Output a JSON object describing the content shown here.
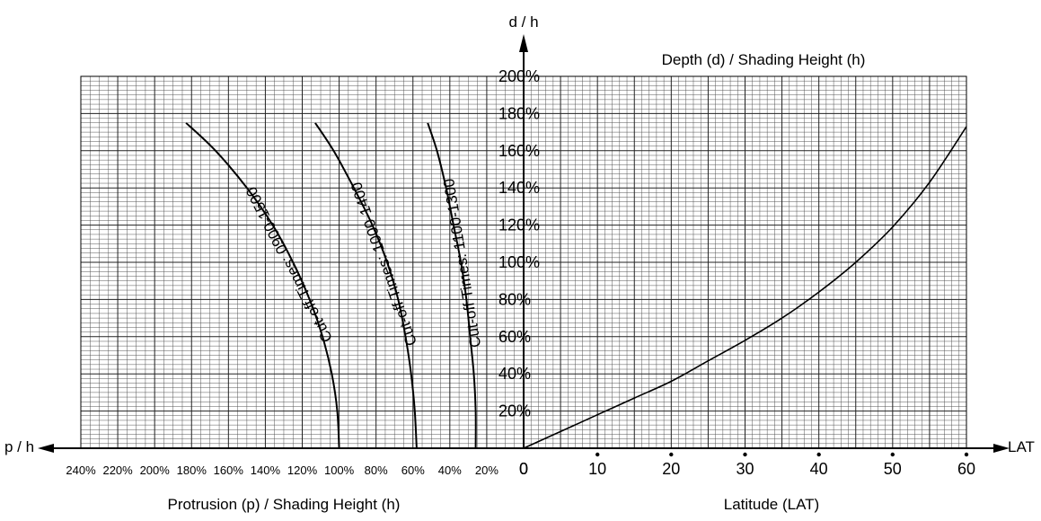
{
  "chart_data": {
    "type": "line",
    "panels": [
      {
        "name": "left",
        "xlabel": "Protrusion (p) / Shading Height (h)",
        "x_axis_arrow_label": "p / h",
        "x_ticks": [
          "240%",
          "220%",
          "200%",
          "180%",
          "160%",
          "140%",
          "120%",
          "100%",
          "80%",
          "60%",
          "40%",
          "20%"
        ],
        "xlim": [
          0,
          240
        ],
        "x_unit": "%",
        "series": [
          {
            "name": "Cut-off Times: 0900-1500",
            "points": [
              [
                100,
                0
              ],
              [
                101,
                20
              ],
              [
                104,
                40
              ],
              [
                109,
                60
              ],
              [
                116,
                80
              ],
              [
                125,
                100
              ],
              [
                136,
                120
              ],
              [
                150,
                140
              ],
              [
                167,
                160
              ],
              [
                183,
                175
              ]
            ]
          },
          {
            "name": "Cut-off Times: 1000-1400",
            "points": [
              [
                58,
                0
              ],
              [
                59,
                20
              ],
              [
                61,
                40
              ],
              [
                64,
                60
              ],
              [
                68,
                80
              ],
              [
                74,
                100
              ],
              [
                82,
                120
              ],
              [
                92,
                140
              ],
              [
                103,
                160
              ],
              [
                113,
                175
              ]
            ]
          },
          {
            "name": "Cut-off Times: 1100-1300",
            "points": [
              [
                26,
                0
              ],
              [
                26,
                20
              ],
              [
                27,
                40
              ],
              [
                29,
                60
              ],
              [
                31,
                80
              ],
              [
                34,
                100
              ],
              [
                38,
                120
              ],
              [
                42,
                140
              ],
              [
                47,
                160
              ],
              [
                52,
                175
              ]
            ]
          }
        ]
      },
      {
        "name": "right",
        "xlabel": "Latitude (LAT)",
        "x_axis_arrow_label": "LAT",
        "x_ticks": [
          "0",
          "10",
          "20",
          "30",
          "40",
          "50",
          "60"
        ],
        "xlim": [
          0,
          60
        ],
        "series": [
          {
            "name": "",
            "points": [
              [
                0,
                0
              ],
              [
                5,
                9
              ],
              [
                10,
                18
              ],
              [
                15,
                27
              ],
              [
                20,
                36
              ],
              [
                25,
                47
              ],
              [
                30,
                58
              ],
              [
                35,
                70
              ],
              [
                40,
                84
              ],
              [
                45,
                100
              ],
              [
                50,
                119
              ],
              [
                55,
                143
              ],
              [
                60,
                173
              ]
            ]
          }
        ]
      }
    ],
    "ylabel": "Depth (d) / Shading Height (h)",
    "y_axis_arrow_label": "d / h",
    "y_ticks": [
      "20%",
      "40%",
      "60%",
      "80%",
      "100%",
      "120%",
      "140%",
      "160%",
      "180%",
      "200%"
    ],
    "ylim": [
      0,
      200
    ],
    "y_unit": "%",
    "grid": true
  }
}
